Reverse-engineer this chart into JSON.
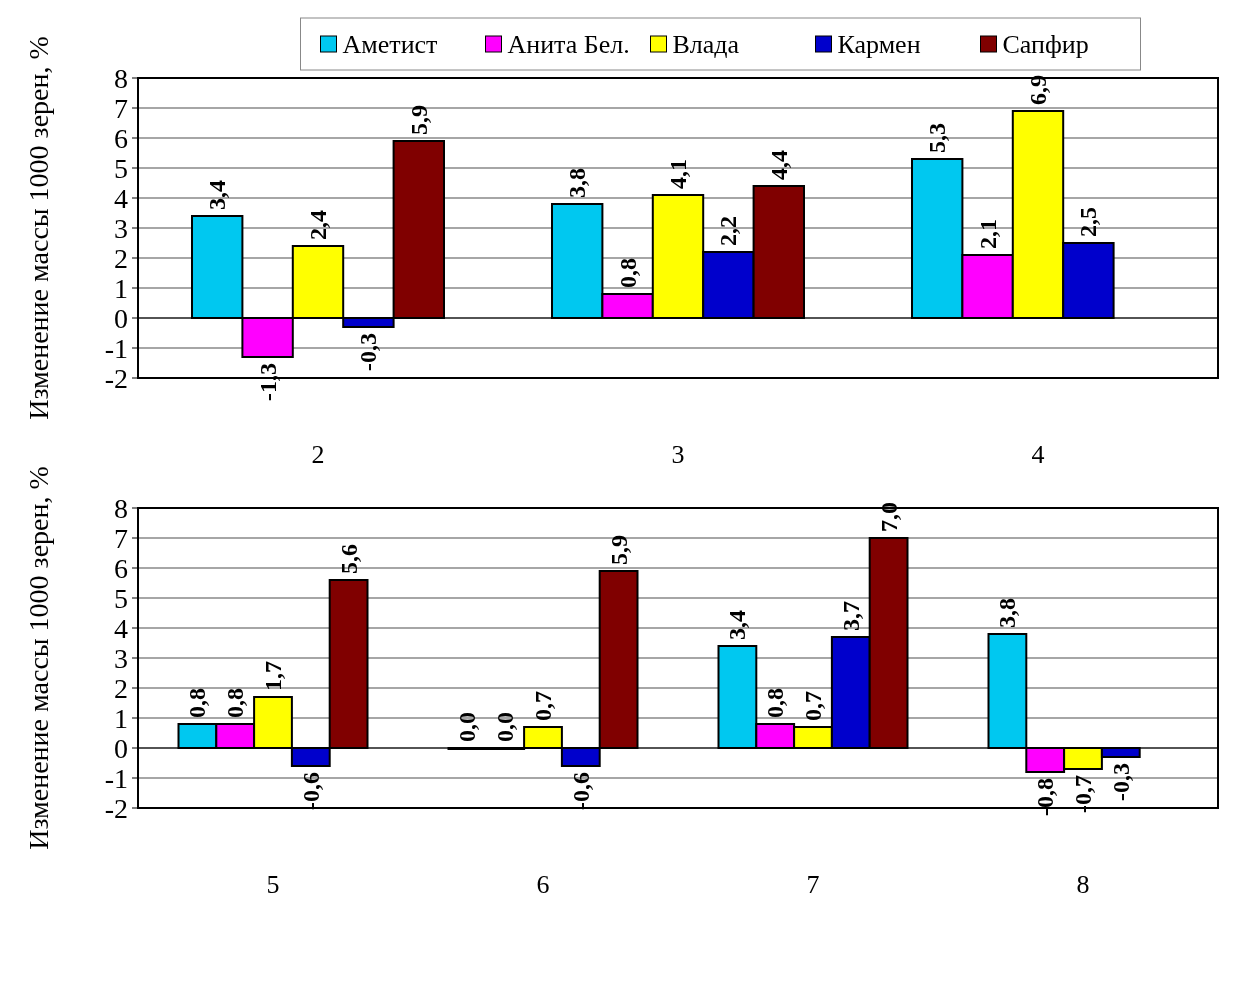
{
  "chart_data": [
    {
      "type": "bar",
      "ylabel": "Изменение массы 1000 зерен, %",
      "categories": [
        "2",
        "3",
        "4"
      ],
      "ylim": [
        -2,
        8
      ],
      "yticks": [
        -2,
        -1,
        0,
        1,
        2,
        3,
        4,
        5,
        6,
        7,
        8
      ],
      "grid": "y",
      "legend": "top",
      "series": [
        {
          "name": "Аметист",
          "color": "#00c8f0",
          "values": [
            3.4,
            3.8,
            5.3
          ],
          "value_labels": [
            "3,4",
            "3,8",
            "5,3"
          ]
        },
        {
          "name": "Анита Бел.",
          "color": "#ff00ff",
          "values": [
            -1.3,
            0.8,
            2.1
          ],
          "value_labels": [
            "-1,3",
            "0,8",
            "2,1"
          ]
        },
        {
          "name": "Влада",
          "color": "#ffff00",
          "values": [
            2.4,
            4.1,
            6.9
          ],
          "value_labels": [
            "2,4",
            "4,1",
            "6,9"
          ]
        },
        {
          "name": "Кармен",
          "color": "#0000cc",
          "values": [
            -0.3,
            2.2,
            2.5
          ],
          "value_labels": [
            "-0,3",
            "2,2",
            "2,5"
          ]
        },
        {
          "name": "Сапфир",
          "color": "#800000",
          "values": [
            5.9,
            4.4,
            null
          ],
          "value_labels": [
            "5,9",
            "4,4",
            null
          ]
        }
      ]
    },
    {
      "type": "bar",
      "ylabel": "Изменение массы 1000 зерен, %",
      "categories": [
        "5",
        "6",
        "7",
        "8"
      ],
      "ylim": [
        -2,
        8
      ],
      "yticks": [
        -2,
        -1,
        0,
        1,
        2,
        3,
        4,
        5,
        6,
        7,
        8
      ],
      "grid": "y",
      "legend": false,
      "series": [
        {
          "color": "#00c8f0",
          "values": [
            0.8,
            0.0,
            3.4,
            3.8
          ],
          "value_labels": [
            "0,8",
            "0,0",
            "3,4",
            "3,8"
          ]
        },
        {
          "color": "#ff00ff",
          "values": [
            0.8,
            0.0,
            0.8,
            -0.8
          ],
          "value_labels": [
            "0,8",
            "0,0",
            "0,8",
            "-0,8"
          ]
        },
        {
          "color": "#ffff00",
          "values": [
            1.7,
            0.7,
            0.7,
            -0.7
          ],
          "value_labels": [
            "1,7",
            "0,7",
            "0,7",
            "-0,7"
          ]
        },
        {
          "color": "#0000cc",
          "values": [
            -0.6,
            -0.6,
            3.7,
            -0.3
          ],
          "value_labels": [
            "-0,6",
            "-0,6",
            "3,7",
            "-0,3"
          ]
        },
        {
          "color": "#800000",
          "values": [
            5.6,
            5.9,
            7.0,
            null
          ],
          "value_labels": [
            "5,6",
            "5,9",
            "7,0",
            null
          ]
        }
      ]
    }
  ]
}
